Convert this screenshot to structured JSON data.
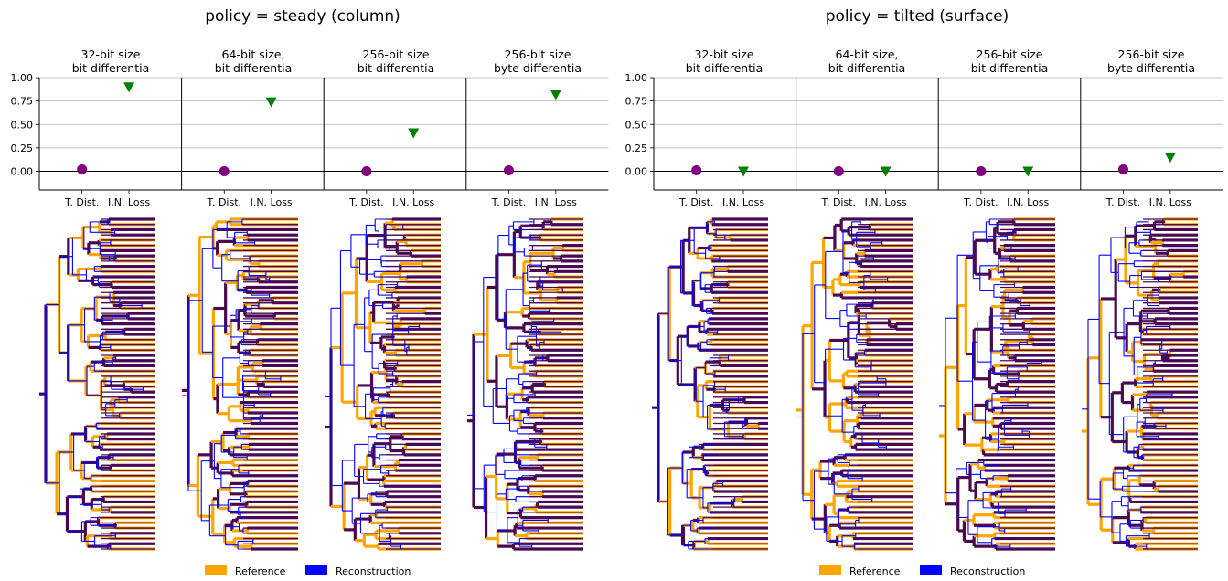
{
  "figure": {
    "groups": [
      {
        "title": "policy = steady (column)",
        "panels": [
          {
            "title1": "32-bit size",
            "title2": "bit differentia"
          },
          {
            "title1": "64-bit size,",
            "title2": "bit differentia"
          },
          {
            "title1": "256-bit size",
            "title2": "bit differentia"
          },
          {
            "title1": "256-bit size",
            "title2": "byte differentia"
          }
        ]
      },
      {
        "title": "policy = tilted (surface)",
        "panels": [
          {
            "title1": "32-bit size",
            "title2": "bit differentia"
          },
          {
            "title1": "64-bit size,",
            "title2": "bit differentia"
          },
          {
            "title1": "256-bit size",
            "title2": "bit differentia"
          },
          {
            "title1": "256-bit size",
            "title2": "byte differentia"
          }
        ]
      }
    ],
    "legend": [
      {
        "label": "Reference",
        "color": "#ffa500"
      },
      {
        "label": "Reconstruction",
        "color": "#0000ff"
      }
    ]
  },
  "chart_data": [
    {
      "type": "scatter",
      "group": "policy = steady (column)",
      "title": "32-bit size bit differentia",
      "categories": [
        "T. Dist.",
        "I.N. Loss"
      ],
      "values": [
        0.02,
        0.9
      ],
      "ylim": [
        -0.2,
        1.0
      ],
      "yticks": [
        0.0,
        0.25,
        0.5,
        0.75,
        1.0
      ],
      "ytick_labels": [
        "0.00",
        "0.25",
        "0.50",
        "0.75",
        "1.00"
      ],
      "grid": true,
      "markers": [
        "circle",
        "triangle-down"
      ],
      "colors": [
        "#800080",
        "#008000"
      ]
    },
    {
      "type": "scatter",
      "group": "policy = steady (column)",
      "title": "64-bit size, bit differentia",
      "categories": [
        "T. Dist.",
        "I.N. Loss"
      ],
      "values": [
        0.0,
        0.74
      ],
      "ylim": [
        -0.2,
        1.0
      ],
      "grid": true,
      "markers": [
        "circle",
        "triangle-down"
      ],
      "colors": [
        "#800080",
        "#008000"
      ]
    },
    {
      "type": "scatter",
      "group": "policy = steady (column)",
      "title": "256-bit size bit differentia",
      "categories": [
        "T. Dist.",
        "I.N. Loss"
      ],
      "values": [
        0.0,
        0.41
      ],
      "ylim": [
        -0.2,
        1.0
      ],
      "grid": true,
      "markers": [
        "circle",
        "triangle-down"
      ],
      "colors": [
        "#800080",
        "#008000"
      ]
    },
    {
      "type": "scatter",
      "group": "policy = steady (column)",
      "title": "256-bit size byte differentia",
      "categories": [
        "T. Dist.",
        "I.N. Loss"
      ],
      "values": [
        0.01,
        0.82
      ],
      "ylim": [
        -0.2,
        1.0
      ],
      "grid": true,
      "markers": [
        "circle",
        "triangle-down"
      ],
      "colors": [
        "#800080",
        "#008000"
      ]
    },
    {
      "type": "scatter",
      "group": "policy = tilted (surface)",
      "title": "32-bit size bit differentia",
      "categories": [
        "T. Dist.",
        "I.N. Loss"
      ],
      "values": [
        0.01,
        0.0
      ],
      "ylim": [
        -0.2,
        1.0
      ],
      "yticks": [
        0.0,
        0.25,
        0.5,
        0.75,
        1.0
      ],
      "ytick_labels": [
        "0.00",
        "0.25",
        "0.50",
        "0.75",
        "1.00"
      ],
      "grid": true,
      "markers": [
        "circle",
        "triangle-down"
      ],
      "colors": [
        "#800080",
        "#008000"
      ]
    },
    {
      "type": "scatter",
      "group": "policy = tilted (surface)",
      "title": "64-bit size, bit differentia",
      "categories": [
        "T. Dist.",
        "I.N. Loss"
      ],
      "values": [
        0.0,
        0.0
      ],
      "ylim": [
        -0.2,
        1.0
      ],
      "grid": true,
      "markers": [
        "circle",
        "triangle-down"
      ],
      "colors": [
        "#800080",
        "#008000"
      ]
    },
    {
      "type": "scatter",
      "group": "policy = tilted (surface)",
      "title": "256-bit size bit differentia",
      "categories": [
        "T. Dist.",
        "I.N. Loss"
      ],
      "values": [
        0.0,
        0.0
      ],
      "ylim": [
        -0.2,
        1.0
      ],
      "grid": true,
      "markers": [
        "circle",
        "triangle-down"
      ],
      "colors": [
        "#800080",
        "#008000"
      ]
    },
    {
      "type": "scatter",
      "group": "policy = tilted (surface)",
      "title": "256-bit size byte differentia",
      "categories": [
        "T. Dist.",
        "I.N. Loss"
      ],
      "values": [
        0.02,
        0.15
      ],
      "ylim": [
        -0.2,
        1.0
      ],
      "grid": true,
      "markers": [
        "circle",
        "triangle-down"
      ],
      "colors": [
        "#800080",
        "#008000"
      ]
    }
  ],
  "trees": {
    "count": 8,
    "leaves": 64,
    "reference_color": "#ffa500",
    "reconstruction_color": "#0000ff",
    "shared_color": "#4b0a4f"
  }
}
